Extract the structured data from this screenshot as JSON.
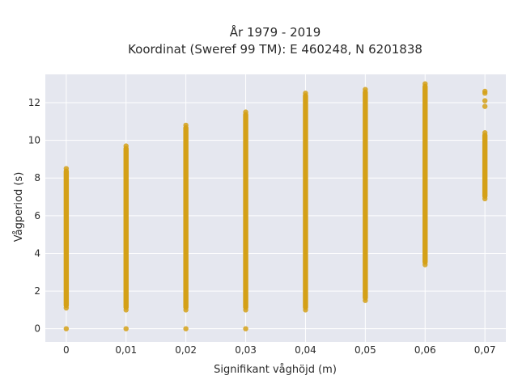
{
  "chart_data": {
    "type": "scatter",
    "title_line1": "År 1979 - 2019",
    "title_line2": "Koordinat (Sweref 99 TM): E 460248, N 6201838",
    "xlabel": "Signifikant våghöjd (m)",
    "ylabel": "Vågperiod (s)",
    "xlim": [
      -0.0035,
      0.0735
    ],
    "ylim": [
      -0.7,
      13.5
    ],
    "grid": true,
    "x_ticks": [
      0,
      0.01,
      0.02,
      0.03,
      0.04,
      0.05,
      0.06,
      0.07
    ],
    "x_tick_labels": [
      "0",
      "0,01",
      "0,02",
      "0,03",
      "0,04",
      "0,05",
      "0,06",
      "0,07"
    ],
    "y_ticks": [
      0,
      2,
      4,
      6,
      8,
      10,
      12
    ],
    "y_tick_labels": [
      "0",
      "2",
      "4",
      "6",
      "8",
      "10",
      "12"
    ],
    "marker_color": "#d4a017",
    "series": [
      {
        "points": [
          {
            "x": 0.0,
            "y_range": [
              1.1,
              8.5
            ],
            "isolated_y": [
              0
            ]
          },
          {
            "x": 0.01,
            "y_range": [
              1.0,
              9.7
            ],
            "isolated_y": [
              0
            ]
          },
          {
            "x": 0.02,
            "y_range": [
              1.0,
              10.8
            ],
            "isolated_y": [
              0
            ]
          },
          {
            "x": 0.03,
            "y_range": [
              1.0,
              11.5
            ],
            "isolated_y": [
              0
            ]
          },
          {
            "x": 0.04,
            "y_range": [
              1.0,
              12.5
            ],
            "isolated_y": []
          },
          {
            "x": 0.05,
            "y_range": [
              1.5,
              12.7
            ],
            "isolated_y": []
          },
          {
            "x": 0.06,
            "y_range": [
              3.4,
              13.0
            ],
            "isolated_y": []
          },
          {
            "x": 0.07,
            "y_range": [
              6.9,
              10.4
            ],
            "isolated_y": [
              11.8,
              12.1,
              12.5,
              12.6
            ]
          }
        ]
      }
    ]
  }
}
